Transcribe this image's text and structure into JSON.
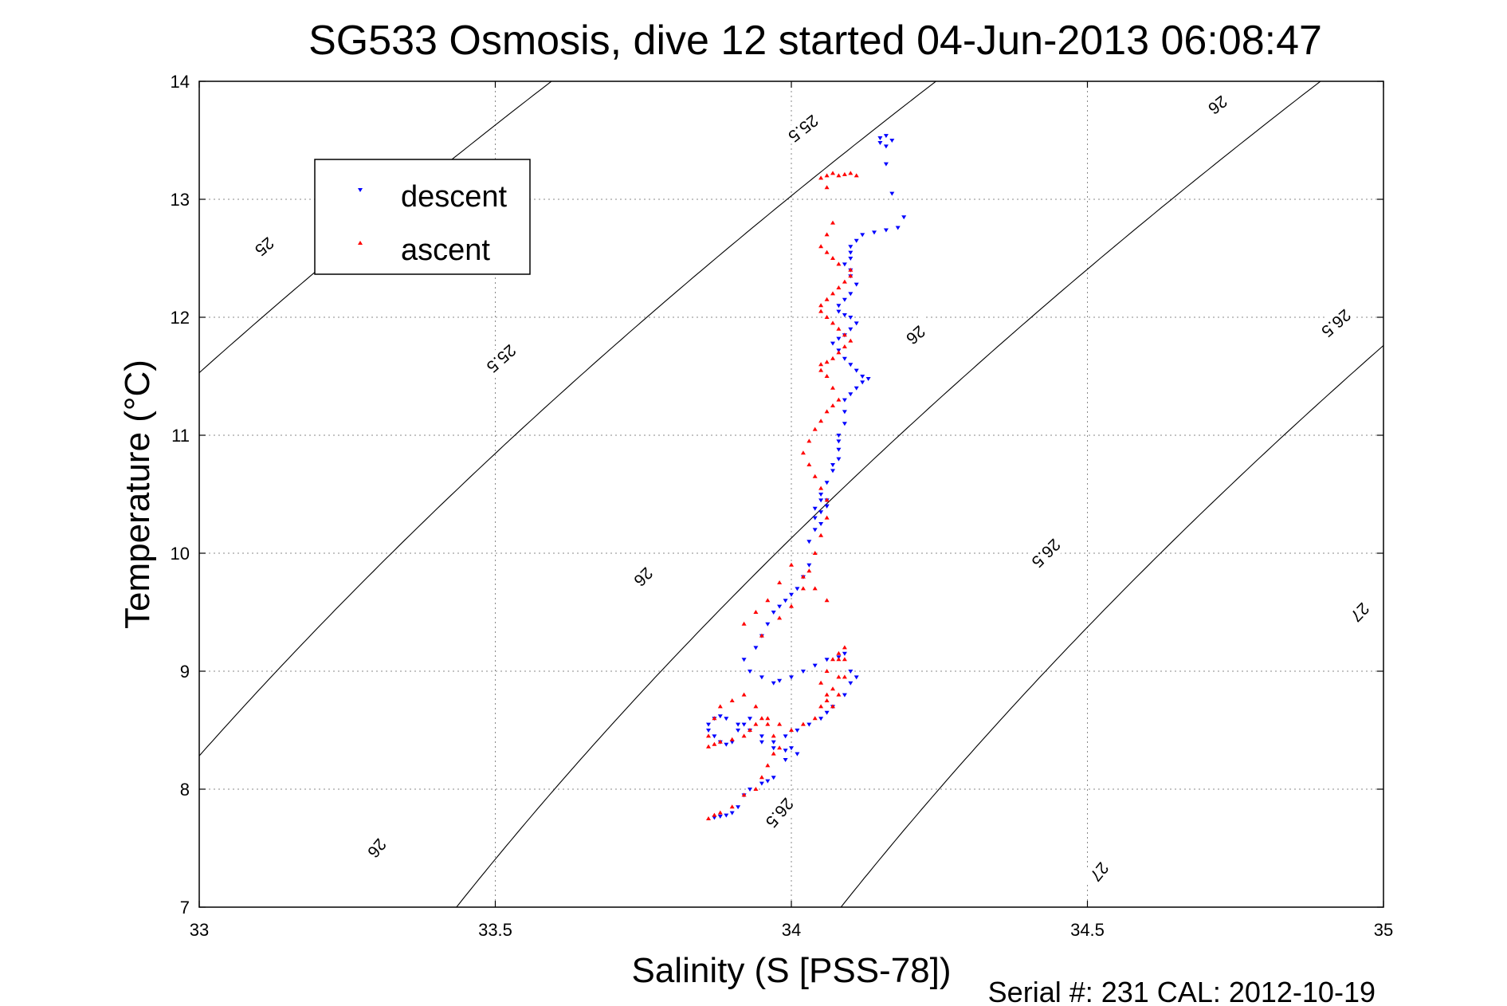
{
  "chart_data": {
    "type": "scatter",
    "title": "SG533 Osmosis, dive 12 started 04-Jun-2013 06:08:47",
    "xlabel": "Salinity (S [PSS-78])",
    "ylabel": "Temperature (°C)",
    "xlim": [
      33,
      35
    ],
    "ylim": [
      7,
      14
    ],
    "xticks": [
      "33",
      "33.5",
      "34",
      "34.5",
      "35"
    ],
    "yticks": [
      "7",
      "8",
      "9",
      "10",
      "11",
      "12",
      "13",
      "14"
    ],
    "grid": true,
    "legend_position": "top-left",
    "footer": "Serial #: 231  CAL: 2012-10-19",
    "density_contours": [
      {
        "level": "25",
        "labels": [
          {
            "x": 33.11,
            "y": 12.6
          }
        ]
      },
      {
        "level": "25.5",
        "labels": [
          {
            "x": 33.51,
            "y": 11.65
          },
          {
            "x": 34.02,
            "y": 13.6
          }
        ]
      },
      {
        "level": "26",
        "labels": [
          {
            "x": 33.3,
            "y": 7.5
          },
          {
            "x": 33.75,
            "y": 9.8
          },
          {
            "x": 34.21,
            "y": 11.85
          },
          {
            "x": 34.72,
            "y": 13.8
          }
        ]
      },
      {
        "level": "26.5",
        "labels": [
          {
            "x": 33.98,
            "y": 7.8
          },
          {
            "x": 34.43,
            "y": 10.0
          },
          {
            "x": 34.92,
            "y": 11.95
          }
        ]
      },
      {
        "level": "27",
        "labels": [
          {
            "x": 34.52,
            "y": 7.3
          },
          {
            "x": 34.96,
            "y": 9.5
          }
        ]
      }
    ],
    "series": [
      {
        "name": "descent",
        "color": "#0000ff",
        "marker": "triangle-down",
        "x": [
          34.16,
          34.15,
          34.15,
          34.16,
          34.17,
          34.16,
          34.17,
          34.19,
          34.18,
          34.16,
          34.14,
          34.12,
          34.11,
          34.1,
          34.1,
          34.1,
          34.09,
          34.1,
          34.1,
          34.11,
          34.1,
          34.09,
          34.08,
          34.08,
          34.09,
          34.1,
          34.11,
          34.1,
          34.09,
          34.08,
          34.07,
          34.08,
          34.09,
          34.1,
          34.11,
          34.12,
          34.13,
          34.12,
          34.11,
          34.1,
          34.09,
          34.09,
          34.09,
          34.08,
          34.08,
          34.08,
          34.08,
          34.07,
          34.07,
          34.06,
          34.05,
          34.06,
          34.06,
          34.05,
          34.04,
          34.04,
          34.03,
          34.05,
          34.06,
          34.05,
          34.04,
          34.03,
          34.02,
          34.01,
          34.0,
          33.99,
          33.98,
          33.97,
          33.96,
          33.95,
          33.94,
          33.92,
          33.93,
          33.95,
          33.97,
          33.98,
          34.0,
          34.02,
          34.04,
          34.06,
          34.08,
          34.09,
          34.1,
          34.11,
          34.1,
          34.09,
          34.07,
          34.06,
          34.05,
          34.03,
          34.01,
          33.99,
          33.97,
          33.95,
          33.93,
          33.91,
          33.89,
          33.88,
          33.87,
          33.86,
          33.86,
          33.87,
          33.88,
          33.89,
          33.9,
          33.91,
          33.92,
          33.93,
          33.95,
          33.97,
          33.99,
          34.0,
          34.01,
          33.99,
          33.97,
          33.96,
          33.95,
          33.93,
          33.92,
          33.91,
          33.9,
          33.89,
          33.88,
          33.87
        ],
        "y": [
          13.54,
          13.52,
          13.48,
          13.45,
          13.5,
          13.3,
          13.05,
          12.85,
          12.76,
          12.74,
          12.72,
          12.7,
          12.65,
          12.6,
          12.55,
          12.5,
          12.45,
          12.4,
          12.35,
          12.28,
          12.2,
          12.15,
          12.1,
          12.05,
          12.02,
          12.0,
          11.95,
          11.9,
          11.85,
          11.82,
          11.78,
          11.72,
          11.65,
          11.6,
          11.55,
          11.5,
          11.48,
          11.45,
          11.4,
          11.35,
          11.3,
          11.2,
          11.1,
          11.0,
          10.95,
          10.88,
          10.8,
          10.75,
          10.7,
          10.6,
          10.5,
          10.45,
          10.4,
          10.35,
          10.3,
          10.2,
          10.1,
          10.25,
          10.4,
          10.45,
          10.38,
          9.9,
          9.8,
          9.7,
          9.65,
          9.6,
          9.55,
          9.5,
          9.4,
          9.3,
          9.2,
          9.1,
          9.0,
          8.95,
          8.9,
          8.92,
          8.95,
          9.0,
          9.05,
          9.1,
          9.12,
          9.15,
          9.0,
          8.95,
          8.9,
          8.8,
          8.7,
          8.65,
          8.6,
          8.55,
          8.5,
          8.45,
          8.4,
          8.45,
          8.5,
          8.55,
          8.6,
          8.62,
          8.6,
          8.55,
          8.5,
          8.45,
          8.4,
          8.38,
          8.4,
          8.5,
          8.55,
          8.6,
          8.4,
          8.35,
          8.33,
          8.35,
          8.3,
          8.25,
          8.1,
          8.07,
          8.05,
          8.0,
          7.95,
          7.85,
          7.8,
          7.78,
          7.77,
          7.76
        ]
      },
      {
        "name": "ascent",
        "color": "#ff0000",
        "marker": "triangle-up",
        "x": [
          33.86,
          33.87,
          33.88,
          33.9,
          33.92,
          33.94,
          33.95,
          33.96,
          33.97,
          33.98,
          33.97,
          33.96,
          33.95,
          33.94,
          33.93,
          33.92,
          33.9,
          33.88,
          33.87,
          33.86,
          33.86,
          33.87,
          33.88,
          33.9,
          33.92,
          33.94,
          33.96,
          33.98,
          34.0,
          34.02,
          34.04,
          34.05,
          34.06,
          34.07,
          34.08,
          34.09,
          34.09,
          34.08,
          34.07,
          34.06,
          34.05,
          34.06,
          34.07,
          34.08,
          34.09,
          34.08,
          34.06,
          34.04,
          34.02,
          34.0,
          33.98,
          33.96,
          33.94,
          33.92,
          33.95,
          33.98,
          34.0,
          34.02,
          34.03,
          34.04,
          34.05,
          34.06,
          34.06,
          34.05,
          34.04,
          34.03,
          34.02,
          34.03,
          34.04,
          34.05,
          34.06,
          34.07,
          34.08,
          34.07,
          34.06,
          34.05,
          34.05,
          34.06,
          34.07,
          34.08,
          34.09,
          34.1,
          34.09,
          34.08,
          34.07,
          34.06,
          34.05,
          34.05,
          34.06,
          34.07,
          34.08,
          34.09,
          34.1,
          34.1,
          34.08,
          34.07,
          34.06,
          34.05,
          34.06,
          34.07,
          34.06,
          34.05,
          34.06,
          34.07,
          34.08,
          34.09,
          34.1,
          34.11
        ],
        "y": [
          7.75,
          7.78,
          7.8,
          7.85,
          7.95,
          8.0,
          8.1,
          8.2,
          8.3,
          8.35,
          8.45,
          8.55,
          8.6,
          8.55,
          8.5,
          8.45,
          8.42,
          8.4,
          8.38,
          8.36,
          8.45,
          8.6,
          8.7,
          8.75,
          8.8,
          8.7,
          8.6,
          8.55,
          8.5,
          8.55,
          8.6,
          8.7,
          8.8,
          8.85,
          8.95,
          9.1,
          9.2,
          9.15,
          9.1,
          9.0,
          8.9,
          8.75,
          8.7,
          8.8,
          8.95,
          9.1,
          9.6,
          9.7,
          9.8,
          9.9,
          9.75,
          9.6,
          9.5,
          9.4,
          9.3,
          9.45,
          9.55,
          9.7,
          9.85,
          10.0,
          10.15,
          10.3,
          10.45,
          10.55,
          10.65,
          10.75,
          10.85,
          10.95,
          11.05,
          11.12,
          11.2,
          11.25,
          11.3,
          11.4,
          11.5,
          11.55,
          11.6,
          11.62,
          11.65,
          11.7,
          11.75,
          11.8,
          11.85,
          11.9,
          11.95,
          12.0,
          12.05,
          12.1,
          12.15,
          12.2,
          12.25,
          12.3,
          12.35,
          12.4,
          12.45,
          12.5,
          12.55,
          12.6,
          12.7,
          12.8,
          13.1,
          13.18,
          13.2,
          13.22,
          13.2,
          13.21,
          13.22,
          13.2
        ]
      }
    ]
  }
}
